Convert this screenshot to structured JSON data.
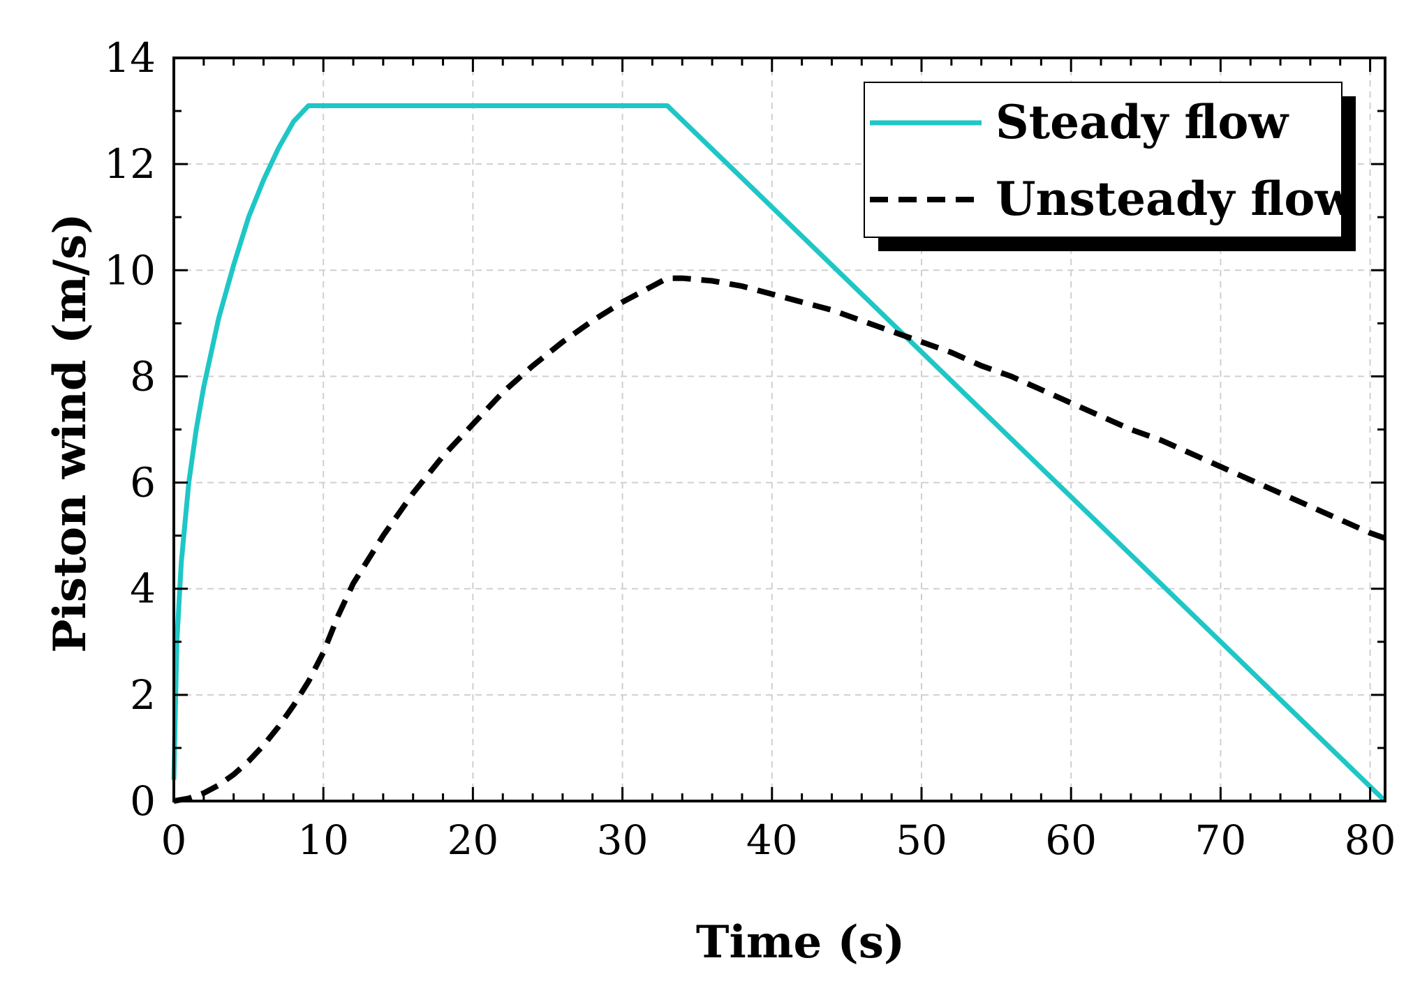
{
  "chart_data": {
    "type": "line",
    "title": "",
    "xlabel": "Time (s)",
    "ylabel": "Piston wind (m/s)",
    "xlim": [
      0,
      81
    ],
    "ylim": [
      0,
      14
    ],
    "xticks": [
      0,
      10,
      20,
      30,
      40,
      50,
      60,
      70,
      80
    ],
    "yticks": [
      0,
      2,
      4,
      6,
      8,
      10,
      12,
      14
    ],
    "grid": true,
    "legend_position": "top-right",
    "colors": {
      "steady": "#1fc6c6",
      "unsteady": "#000000"
    },
    "series": [
      {
        "name": "Steady flow",
        "style": "solid",
        "x": [
          0,
          0.2,
          0.5,
          1,
          1.5,
          2,
          3,
          4,
          5,
          6,
          7,
          8,
          9,
          33,
          81
        ],
        "y": [
          0.4,
          3.0,
          4.5,
          6.0,
          7.0,
          7.8,
          9.1,
          10.1,
          11.0,
          11.7,
          12.3,
          12.8,
          13.1,
          13.1,
          0
        ]
      },
      {
        "name": "Unsteady flow",
        "style": "dashed",
        "x": [
          0,
          1,
          2,
          3,
          4,
          5,
          6,
          7,
          8,
          9,
          10,
          11,
          12,
          14,
          16,
          18,
          20,
          22,
          24,
          26,
          28,
          30,
          32,
          33,
          34,
          36,
          38,
          40,
          42,
          44,
          46,
          48,
          50,
          52,
          54,
          56,
          58,
          60,
          62,
          64,
          66,
          68,
          70,
          72,
          74,
          76,
          78,
          80,
          81
        ],
        "y": [
          0,
          0.05,
          0.15,
          0.3,
          0.5,
          0.75,
          1.05,
          1.4,
          1.8,
          2.25,
          2.8,
          3.5,
          4.1,
          5.0,
          5.8,
          6.5,
          7.1,
          7.7,
          8.2,
          8.65,
          9.05,
          9.4,
          9.7,
          9.85,
          9.85,
          9.8,
          9.7,
          9.55,
          9.4,
          9.25,
          9.05,
          8.85,
          8.65,
          8.45,
          8.2,
          8.0,
          7.75,
          7.5,
          7.25,
          7.0,
          6.8,
          6.55,
          6.3,
          6.05,
          5.8,
          5.55,
          5.3,
          5.05,
          4.95
        ]
      }
    ]
  }
}
